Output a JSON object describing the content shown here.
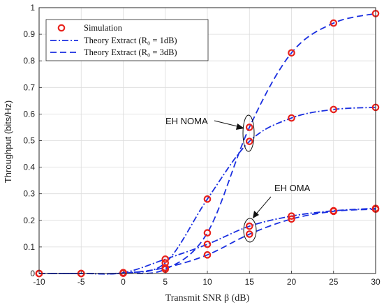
{
  "chart_data": {
    "type": "line",
    "xlabel": "Transmit SNR β (dB)",
    "ylabel": "Throughput (bits/Hz)",
    "xlim": [
      -10,
      30
    ],
    "ylim": [
      0,
      1
    ],
    "xticks": [
      -10,
      -5,
      0,
      5,
      10,
      15,
      20,
      25,
      30
    ],
    "yticks": [
      0,
      0.1,
      0.2,
      0.3,
      0.4,
      0.5,
      0.6,
      0.7,
      0.8,
      0.9,
      1
    ],
    "grid": true,
    "legend_position": "top-left",
    "legend": [
      {
        "label": "Simulation",
        "style": "markers",
        "color": "#e8221c"
      },
      {
        "label": "Theory Extract (R₀ = 1dB)",
        "style": "dash-dot",
        "color": "#1a2fe0"
      },
      {
        "label": "Theory Extract (R₀ = 3dB)",
        "style": "dashed",
        "color": "#1a2fe0"
      }
    ],
    "x": [
      -10,
      -5,
      0,
      5,
      10,
      15,
      20,
      25,
      30
    ],
    "series": [
      {
        "group": "EH NOMA",
        "style": "dash-dot",
        "color": "#1a2fe0",
        "values": [
          0,
          0,
          0.003,
          0.04,
          0.28,
          0.497,
          0.585,
          0.617,
          0.625
        ]
      },
      {
        "group": "EH NOMA",
        "style": "dashed",
        "color": "#1a2fe0",
        "values": [
          0,
          0,
          0.001,
          0.016,
          0.153,
          0.55,
          0.83,
          0.942,
          0.978
        ]
      },
      {
        "group": "EH OMA",
        "style": "dash-dot",
        "color": "#1a2fe0",
        "values": [
          0,
          0,
          0.003,
          0.054,
          0.11,
          0.178,
          0.216,
          0.236,
          0.245
        ]
      },
      {
        "group": "EH OMA",
        "style": "dashed",
        "color": "#1a2fe0",
        "values": [
          0,
          0,
          0.001,
          0.022,
          0.07,
          0.148,
          0.205,
          0.234,
          0.242
        ]
      }
    ],
    "annotations": [
      {
        "text": "EH NOMA"
      },
      {
        "text": "EH OMA"
      }
    ]
  }
}
